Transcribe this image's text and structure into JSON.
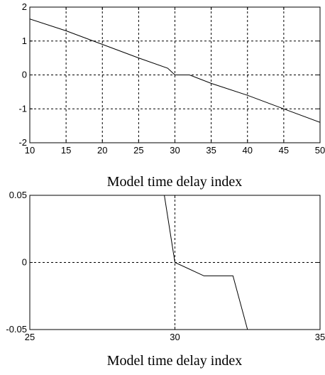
{
  "chart_data": [
    {
      "type": "line",
      "xlabel": "Model time delay index",
      "ylabel": "",
      "xlim": [
        10,
        50
      ],
      "ylim": [
        -2,
        2
      ],
      "xticks": [
        "10",
        "15",
        "20",
        "25",
        "30",
        "35",
        "40",
        "45",
        "50"
      ],
      "yticks": [
        "2",
        "1",
        "0",
        "-1",
        "-2"
      ],
      "grid": true,
      "series": [
        {
          "x": [
            10,
            15,
            20,
            25,
            29,
            30,
            32,
            35,
            40,
            45,
            50
          ],
          "y": [
            1.65,
            1.3,
            0.9,
            0.5,
            0.2,
            0.0,
            0.0,
            -0.25,
            -0.6,
            -1.0,
            -1.4
          ]
        }
      ]
    },
    {
      "type": "line",
      "xlabel": "Model time delay index",
      "ylabel": "",
      "xlim": [
        25,
        35
      ],
      "ylim": [
        -0.05,
        0.05
      ],
      "xticks": [
        "25",
        "30",
        "35"
      ],
      "yticks": [
        "0.05",
        "0",
        "-0.05"
      ],
      "grid": true,
      "series": [
        {
          "x": [
            29.6,
            30,
            31,
            32,
            32.5
          ],
          "y": [
            0.055,
            0.0,
            -0.01,
            -0.01,
            -0.05
          ]
        }
      ]
    }
  ]
}
